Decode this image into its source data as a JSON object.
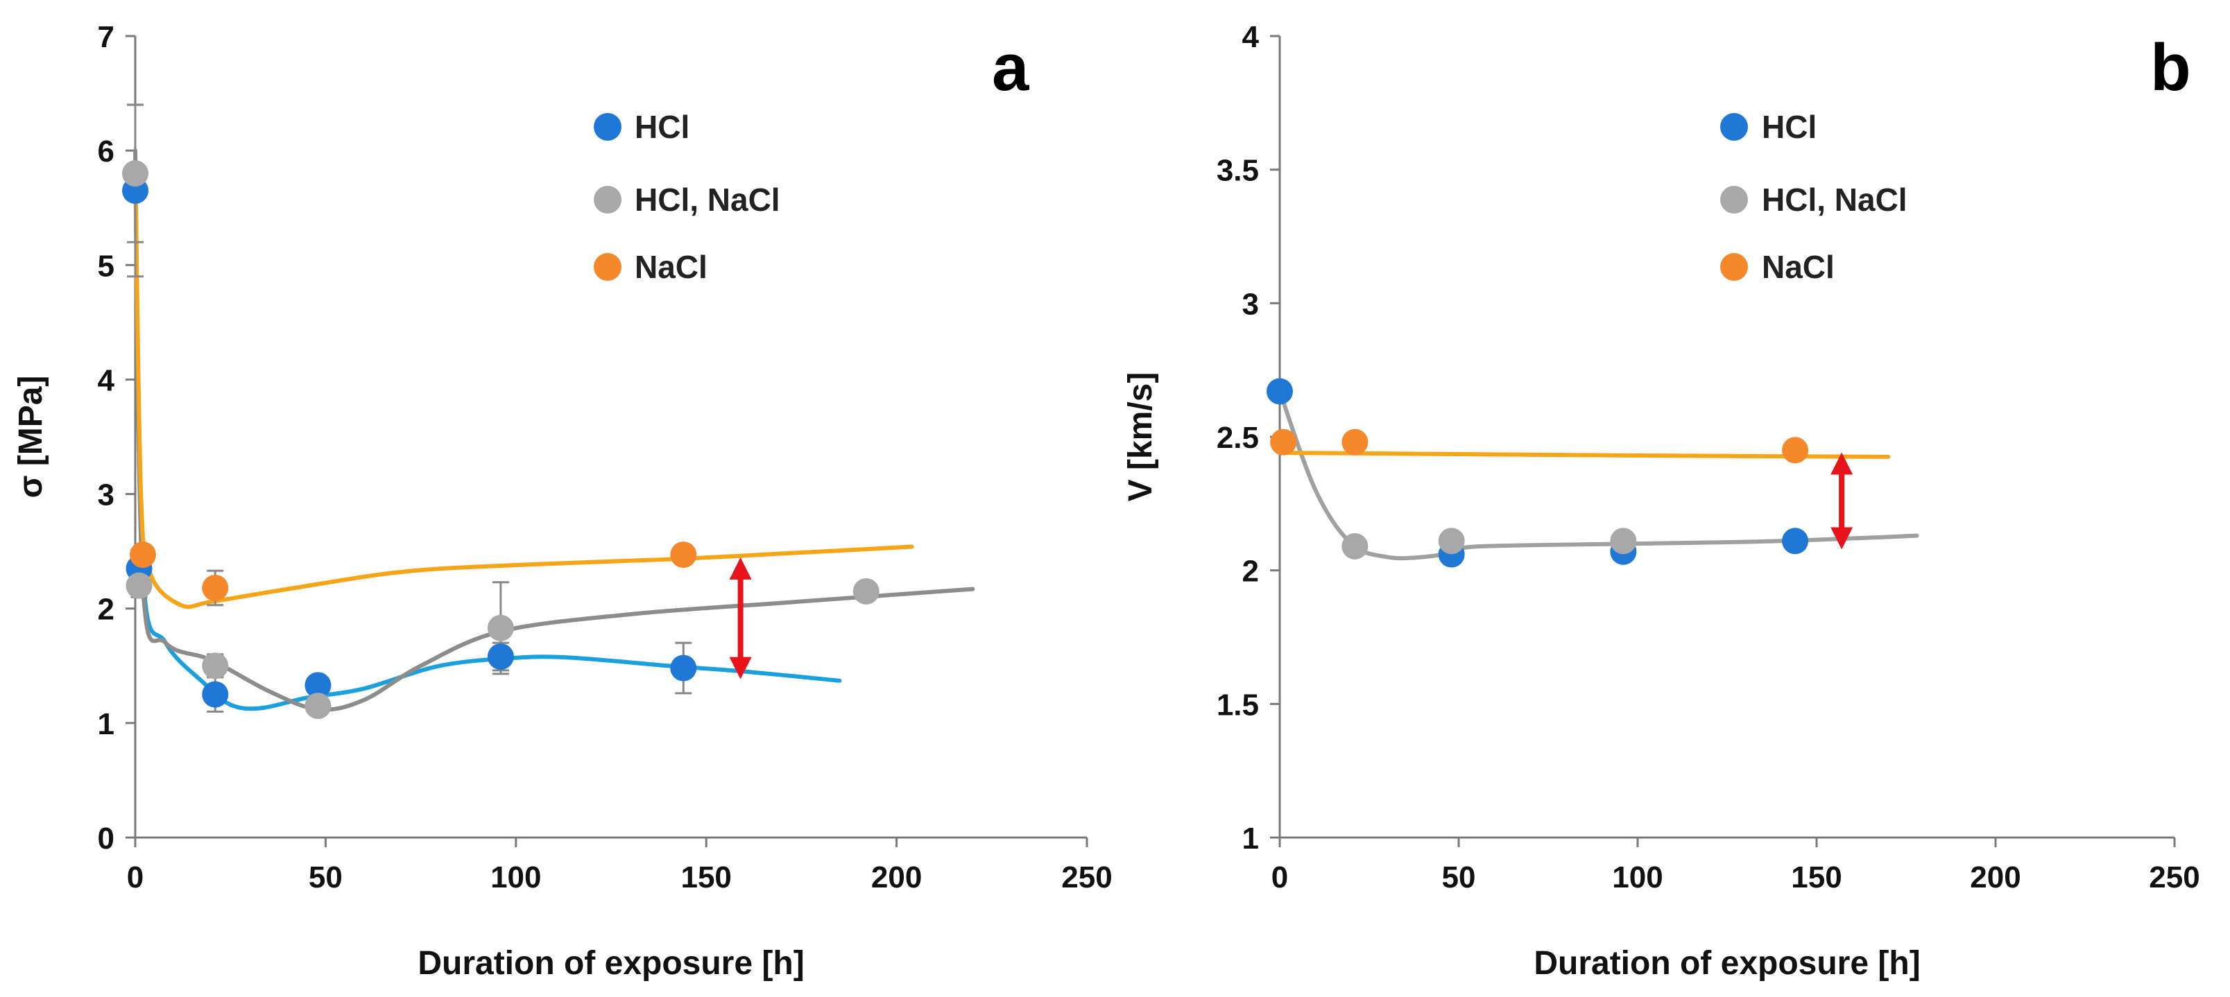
{
  "chart_data": [
    {
      "type": "scatter",
      "panel_label": "a",
      "xlabel": "Duration of exposure [h]",
      "ylabel": "σ [MPa]",
      "xlim": [
        0,
        250
      ],
      "ylim": [
        0,
        7
      ],
      "xticks": [
        "0",
        "50",
        "100",
        "150",
        "200",
        "250"
      ],
      "yticks": [
        "0",
        "1",
        "2",
        "3",
        "4",
        "5",
        "6",
        "7"
      ],
      "grid": false,
      "legend_position": "top-center",
      "series": [
        {
          "name": "HCl",
          "color": "#1f77d6",
          "curve_color": "#1aa0df",
          "points": [
            {
              "x": 0,
              "y": 5.65,
              "err": 0.75
            },
            {
              "x": 1,
              "y": 2.35,
              "err": 0.0
            },
            {
              "x": 21,
              "y": 1.25,
              "err": 0.15
            },
            {
              "x": 48,
              "y": 1.33,
              "err": 0.05
            },
            {
              "x": 96,
              "y": 1.58,
              "err": 0.12
            },
            {
              "x": 144,
              "y": 1.48,
              "err": 0.22
            }
          ],
          "curve": [
            [
              0,
              5.9
            ],
            [
              2,
              2.3
            ],
            [
              8,
              1.7
            ],
            [
              18,
              1.35
            ],
            [
              25,
              1.16
            ],
            [
              33,
              1.13
            ],
            [
              45,
              1.22
            ],
            [
              60,
              1.3
            ],
            [
              80,
              1.5
            ],
            [
              100,
              1.57
            ],
            [
              115,
              1.57
            ],
            [
              140,
              1.5
            ],
            [
              160,
              1.45
            ],
            [
              185,
              1.37
            ]
          ]
        },
        {
          "name": "HCl, NaCl",
          "color": "#a8a8a8",
          "curve_color": "#8c8c8c",
          "points": [
            {
              "x": 0,
              "y": 5.8,
              "err": 0.6
            },
            {
              "x": 1,
              "y": 2.2,
              "err": 0.1
            },
            {
              "x": 21,
              "y": 1.5,
              "err": 0.1
            },
            {
              "x": 48,
              "y": 1.15,
              "err": 0.05
            },
            {
              "x": 96,
              "y": 1.83,
              "err": 0.4
            },
            {
              "x": 192,
              "y": 2.15,
              "err": 0.0
            }
          ],
          "curve": [
            [
              0,
              6.0
            ],
            [
              2,
              2.2
            ],
            [
              8,
              1.7
            ],
            [
              20,
              1.55
            ],
            [
              35,
              1.28
            ],
            [
              48,
              1.12
            ],
            [
              60,
              1.2
            ],
            [
              75,
              1.5
            ],
            [
              96,
              1.8
            ],
            [
              130,
              1.95
            ],
            [
              170,
              2.05
            ],
            [
              220,
              2.17
            ]
          ]
        },
        {
          "name": "NaCl",
          "color": "#f5882a",
          "curve_color": "#f5a517",
          "points": [
            {
              "x": 2,
              "y": 2.47,
              "err": 0.0
            },
            {
              "x": 21,
              "y": 2.18,
              "err": 0.15
            },
            {
              "x": 144,
              "y": 2.47,
              "err": 0.0
            }
          ],
          "curve": [
            [
              0,
              5.9
            ],
            [
              1.5,
              3.0
            ],
            [
              4,
              2.3
            ],
            [
              12,
              2.03
            ],
            [
              20,
              2.06
            ],
            [
              40,
              2.17
            ],
            [
              70,
              2.32
            ],
            [
              100,
              2.38
            ],
            [
              140,
              2.43
            ],
            [
              170,
              2.48
            ],
            [
              204,
              2.54
            ]
          ]
        }
      ],
      "annotation_arrow": {
        "x": 159,
        "y1": 2.35,
        "y2": 1.48,
        "color": "#e8141c"
      }
    },
    {
      "type": "scatter",
      "panel_label": "b",
      "xlabel": "Duration of exposure [h]",
      "ylabel": "V [km/s]",
      "xlim": [
        0,
        250
      ],
      "ylim": [
        1,
        4
      ],
      "xticks": [
        "0",
        "50",
        "100",
        "150",
        "200",
        "250"
      ],
      "yticks": [
        "1",
        "1.5",
        "2",
        "2.5",
        "3",
        "3.5",
        "4"
      ],
      "grid": false,
      "legend_position": "top-center",
      "series": [
        {
          "name": "HCl",
          "color": "#1f77d6",
          "points": [
            {
              "x": 0,
              "y": 2.67
            },
            {
              "x": 48,
              "y": 2.06
            },
            {
              "x": 96,
              "y": 2.07
            },
            {
              "x": 144,
              "y": 2.11
            }
          ]
        },
        {
          "name": "HCl, NaCl",
          "color": "#a8a8a8",
          "curve_color": "#a0a0a0",
          "points": [
            {
              "x": 21,
              "y": 2.09
            },
            {
              "x": 48,
              "y": 2.11
            },
            {
              "x": 96,
              "y": 2.11
            }
          ],
          "curve": [
            [
              0,
              2.67
            ],
            [
              10,
              2.3
            ],
            [
              20,
              2.1
            ],
            [
              30,
              2.05
            ],
            [
              40,
              2.05
            ],
            [
              50,
              2.07
            ],
            [
              56,
              2.09
            ],
            [
              100,
              2.1
            ],
            [
              140,
              2.11
            ],
            [
              178,
              2.13
            ]
          ]
        },
        {
          "name": "NaCl",
          "color": "#f5882a",
          "curve_color": "#f5a517",
          "points": [
            {
              "x": 1,
              "y": 2.48
            },
            {
              "x": 21,
              "y": 2.48
            },
            {
              "x": 144,
              "y": 2.45
            }
          ],
          "curve": [
            [
              0,
              2.44
            ],
            [
              50,
              2.435
            ],
            [
              100,
              2.43
            ],
            [
              170,
              2.425
            ]
          ]
        }
      ],
      "annotation_arrow": {
        "x": 157,
        "y1": 2.4,
        "y2": 2.12,
        "color": "#e8141c"
      }
    }
  ]
}
